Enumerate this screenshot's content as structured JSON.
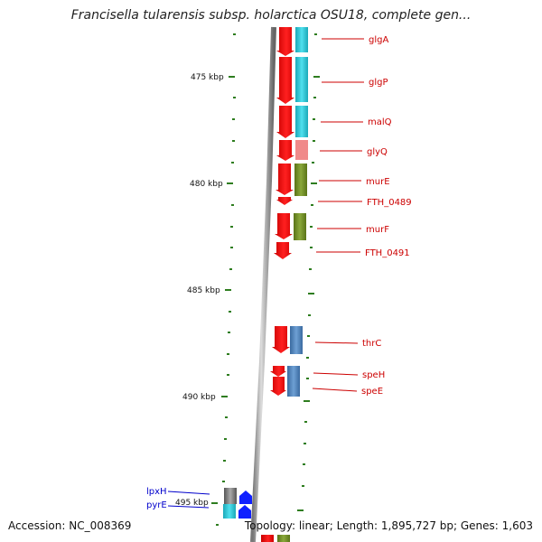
{
  "title": "Francisella tularensis subsp. holarctica OSU18, complete gen...",
  "footer": {
    "accession": "Accession: NC_008369",
    "topology": "Topology: linear; Length: 1,895,727 bp; Genes: 1,603"
  },
  "colors": {
    "tick": "#2e7d1f",
    "strand": "#ff1a1a",
    "cyan": "#2ec4d4",
    "olive": "#6f8a25",
    "steelblue": "#4a7fb5",
    "pink": "#f08a8a",
    "gray": "#6e6e6e",
    "blue_glyph": "#1020ff",
    "label_red": "#cc0000",
    "label_blue": "#0000cc"
  },
  "scale_labels": [
    "475 kbp",
    "480 kbp",
    "485 kbp",
    "490 kbp",
    "495 kbp"
  ],
  "genes": [
    {
      "name": "glgA",
      "color": "red"
    },
    {
      "name": "glgP",
      "color": "red"
    },
    {
      "name": "malQ",
      "color": "red"
    },
    {
      "name": "glyQ",
      "color": "red"
    },
    {
      "name": "murE",
      "color": "red"
    },
    {
      "name": "FTH_0489",
      "color": "red"
    },
    {
      "name": "murF",
      "color": "red"
    },
    {
      "name": "FTH_0491",
      "color": "red"
    },
    {
      "name": "thrC",
      "color": "red"
    },
    {
      "name": "speH",
      "color": "red"
    },
    {
      "name": "speE",
      "color": "red"
    },
    {
      "name": "lpxH",
      "color": "blue"
    },
    {
      "name": "pyrE",
      "color": "blue"
    }
  ]
}
